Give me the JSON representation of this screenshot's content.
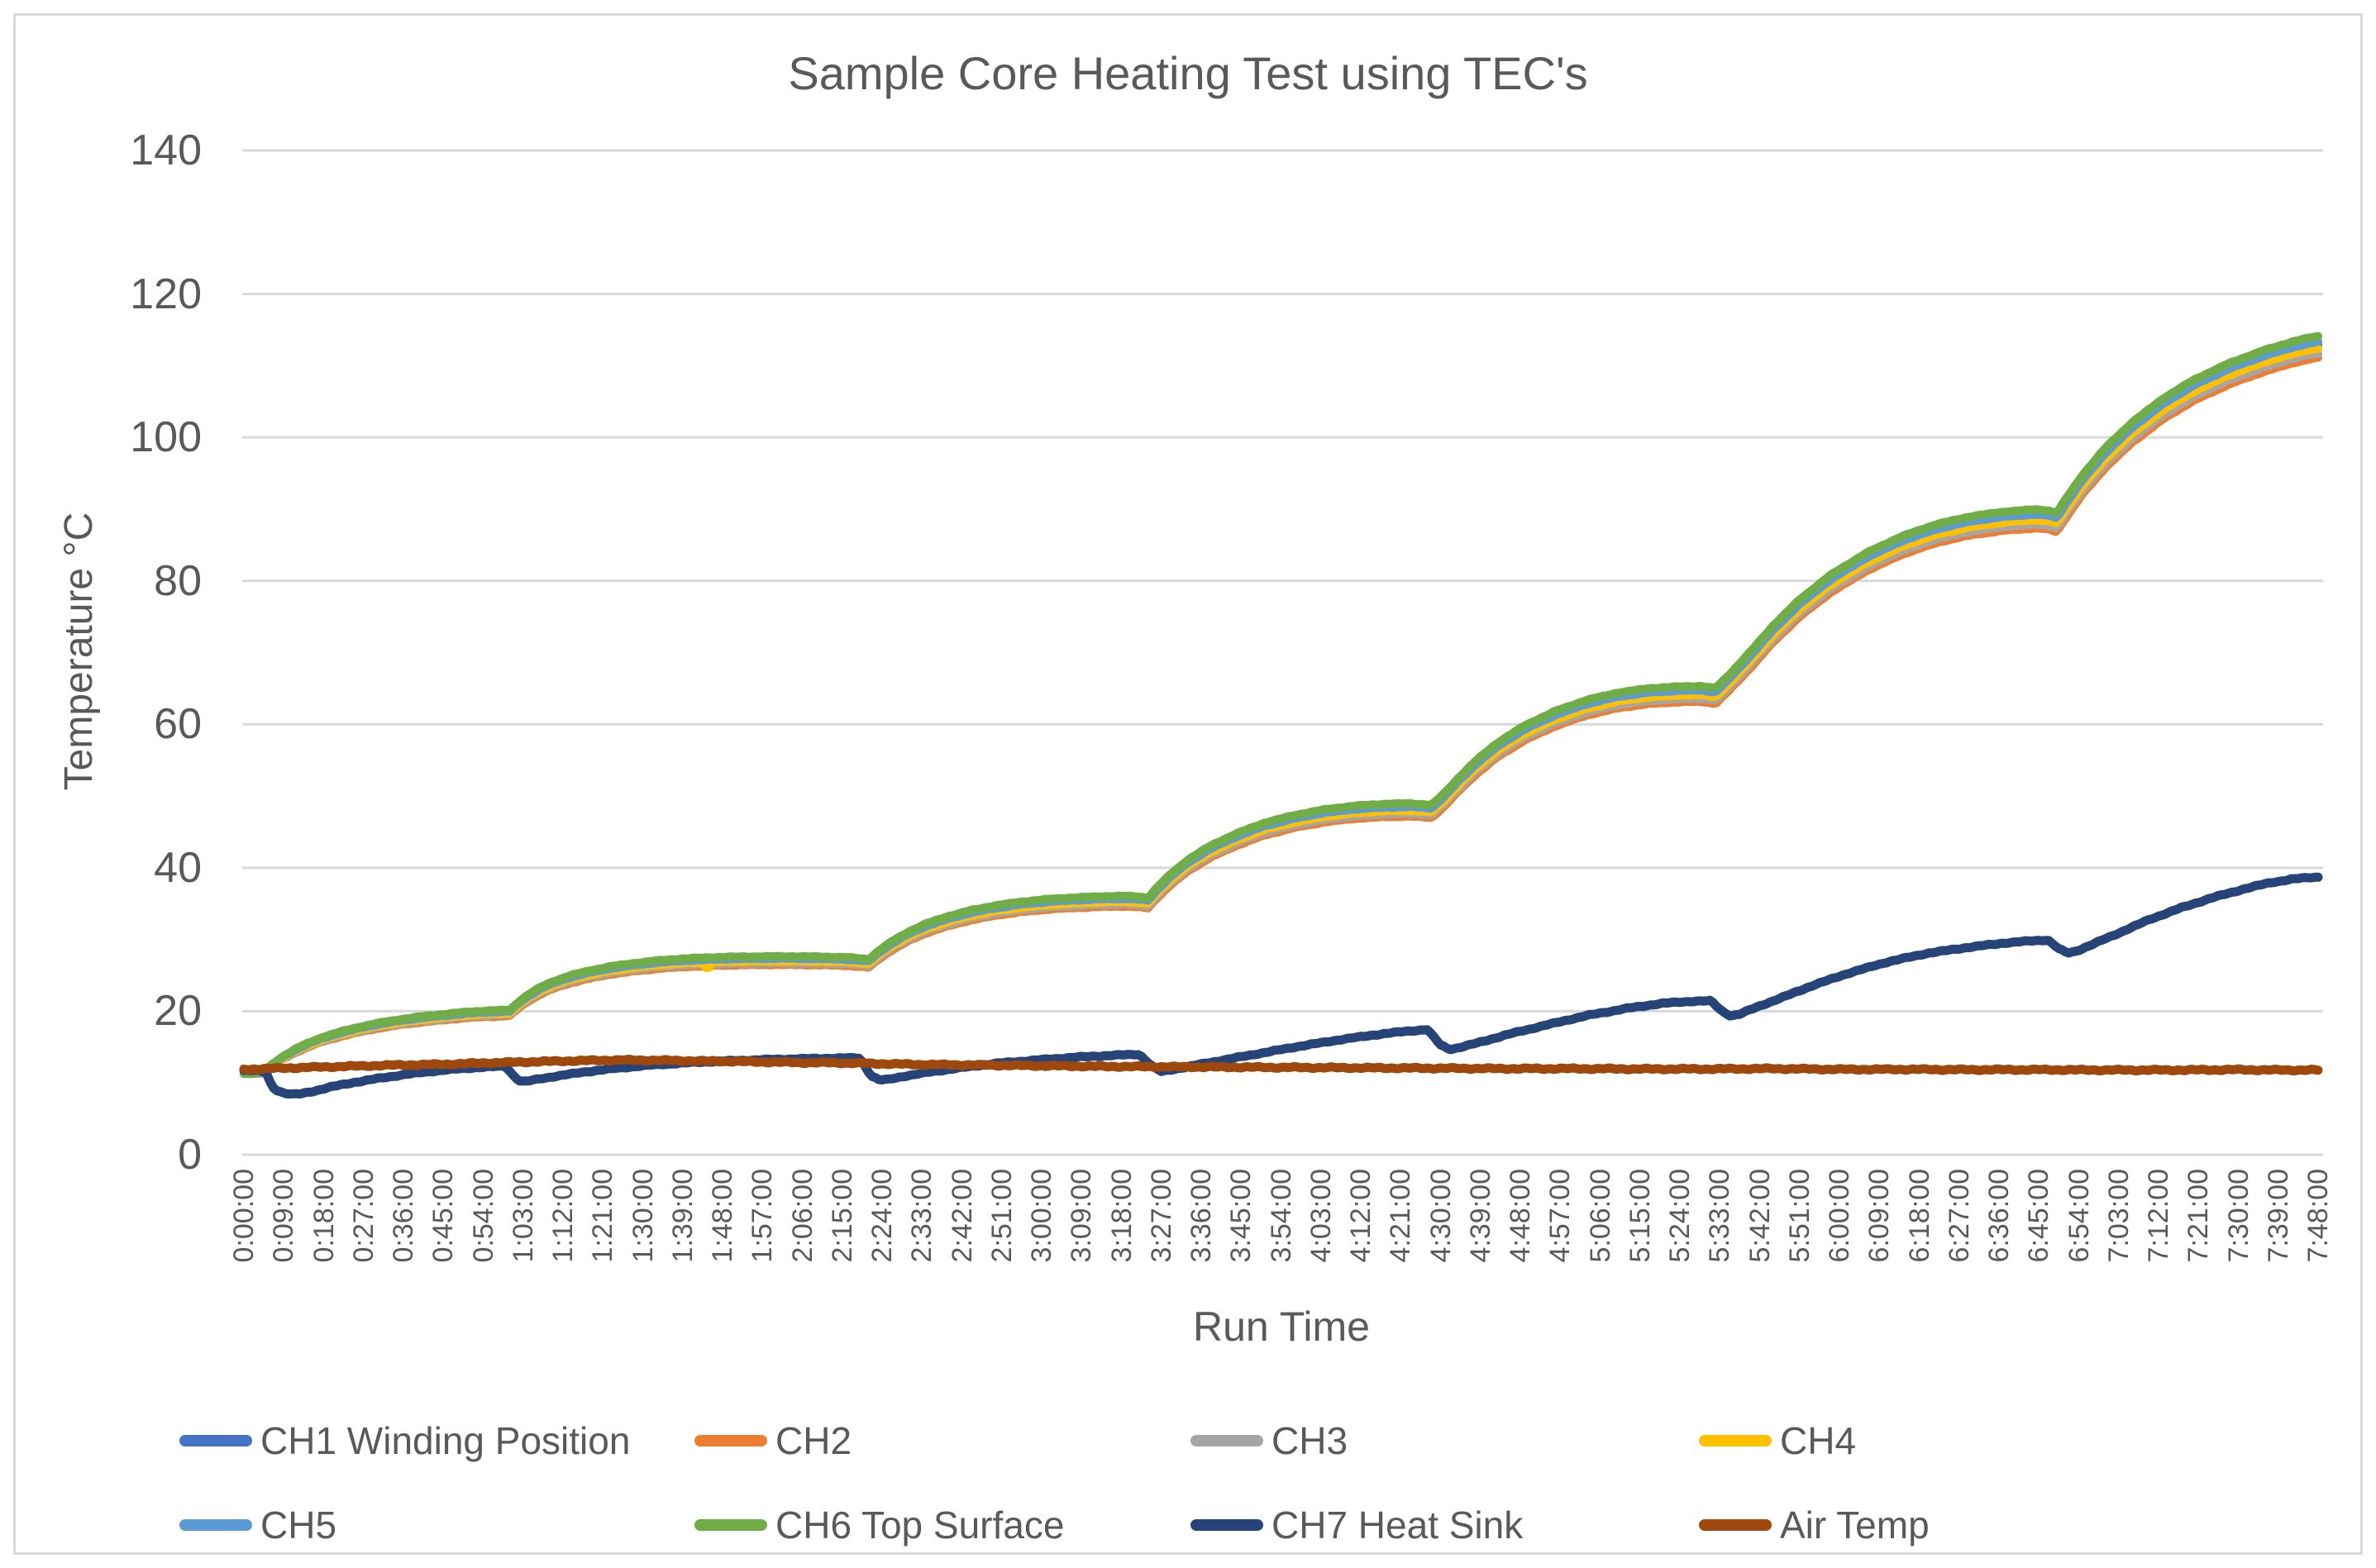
{
  "chart_title": "Sample Core Heating Test using TEC's",
  "styles": {
    "text_color": "#595959",
    "gridline_color": "#d9d9d9",
    "frame_color": "#d9d9d9",
    "background": "#ffffff"
  },
  "chart_data": {
    "type": "line",
    "title": "Sample Core Heating Test using TEC's",
    "xlabel": "Run Time",
    "ylabel": "Temperature °C",
    "ylim": [
      0,
      140
    ],
    "y_ticks": [
      0,
      20,
      40,
      60,
      80,
      100,
      120,
      140
    ],
    "grid": "horizontal",
    "legend_position": "bottom",
    "x_minutes_per_tick": 9,
    "x_total_minutes": 468,
    "x_tick_labels": [
      "0:00:00",
      "0:09:00",
      "0:18:00",
      "0:27:00",
      "0:36:00",
      "0:45:00",
      "0:54:00",
      "1:03:00",
      "1:12:00",
      "1:21:00",
      "1:30:00",
      "1:39:00",
      "1:48:00",
      "1:57:00",
      "2:06:00",
      "2:15:00",
      "2:24:00",
      "2:33:00",
      "2:42:00",
      "2:51:00",
      "3:00:00",
      "3:09:00",
      "3:18:00",
      "3:27:00",
      "3:36:00",
      "3:45:00",
      "3:54:00",
      "4:03:00",
      "4:12:00",
      "4:21:00",
      "4:30:00",
      "4:39:00",
      "4:48:00",
      "4:57:00",
      "5:06:00",
      "5:15:00",
      "5:24:00",
      "5:33:00",
      "5:42:00",
      "5:51:00",
      "6:00:00",
      "6:09:00",
      "6:18:00",
      "6:27:00",
      "6:36:00",
      "6:45:00",
      "6:54:00",
      "7:03:00",
      "7:12:00",
      "7:21:00",
      "7:30:00",
      "7:39:00",
      "7:48:00"
    ],
    "bundle_base_points": [
      [
        0,
        11.3
      ],
      [
        2,
        11.3
      ],
      [
        4,
        11.4
      ],
      [
        5,
        11.7
      ],
      [
        7,
        12.7
      ],
      [
        9,
        13.5
      ],
      [
        12,
        14.5
      ],
      [
        15,
        15.3
      ],
      [
        18,
        16.0
      ],
      [
        22,
        16.7
      ],
      [
        26,
        17.3
      ],
      [
        30,
        17.8
      ],
      [
        35,
        18.3
      ],
      [
        40,
        18.7
      ],
      [
        45,
        19.0
      ],
      [
        50,
        19.3
      ],
      [
        54,
        19.45
      ],
      [
        58,
        19.55
      ],
      [
        60,
        19.6
      ],
      [
        62,
        20.7
      ],
      [
        64,
        21.6
      ],
      [
        67,
        22.7
      ],
      [
        70,
        23.5
      ],
      [
        74,
        24.3
      ],
      [
        78,
        24.9
      ],
      [
        83,
        25.5
      ],
      [
        88,
        25.9
      ],
      [
        94,
        26.3
      ],
      [
        100,
        26.55
      ],
      [
        106,
        26.7
      ],
      [
        112,
        26.78
      ],
      [
        118,
        26.82
      ],
      [
        124,
        26.82
      ],
      [
        130,
        26.78
      ],
      [
        136,
        26.7
      ],
      [
        139,
        26.55
      ],
      [
        141,
        26.45
      ],
      [
        143,
        27.5
      ],
      [
        146,
        28.8
      ],
      [
        150,
        30.2
      ],
      [
        154,
        31.3
      ],
      [
        159,
        32.3
      ],
      [
        164,
        33.1
      ],
      [
        170,
        33.8
      ],
      [
        176,
        34.3
      ],
      [
        182,
        34.65
      ],
      [
        188,
        34.85
      ],
      [
        194,
        35.0
      ],
      [
        199,
        35.05
      ],
      [
        202,
        34.95
      ],
      [
        204,
        34.8
      ],
      [
        206,
        36.2
      ],
      [
        209,
        38.0
      ],
      [
        213,
        40.0
      ],
      [
        218,
        41.9
      ],
      [
        224,
        43.6
      ],
      [
        230,
        45.0
      ],
      [
        237,
        46.1
      ],
      [
        244,
        46.9
      ],
      [
        251,
        47.4
      ],
      [
        258,
        47.65
      ],
      [
        263,
        47.7
      ],
      [
        266,
        47.6
      ],
      [
        268,
        47.5
      ],
      [
        271,
        49.2
      ],
      [
        274,
        51.2
      ],
      [
        278,
        53.6
      ],
      [
        283,
        56.1
      ],
      [
        289,
        58.4
      ],
      [
        296,
        60.4
      ],
      [
        303,
        61.9
      ],
      [
        310,
        62.9
      ],
      [
        317,
        63.5
      ],
      [
        324,
        63.75
      ],
      [
        329,
        63.8
      ],
      [
        332,
        63.5
      ],
      [
        335,
        65.3
      ],
      [
        340,
        68.6
      ],
      [
        345,
        72.1
      ],
      [
        351,
        75.7
      ],
      [
        358,
        79.1
      ],
      [
        366,
        82.1
      ],
      [
        374,
        84.4
      ],
      [
        382,
        86.1
      ],
      [
        390,
        87.2
      ],
      [
        398,
        87.85
      ],
      [
        404,
        88.1
      ],
      [
        407,
        88.0
      ],
      [
        409,
        87.6
      ],
      [
        411,
        89.5
      ],
      [
        415,
        93.0
      ],
      [
        420,
        96.6
      ],
      [
        426,
        100.1
      ],
      [
        433,
        103.4
      ],
      [
        440,
        106.0
      ],
      [
        448,
        108.3
      ],
      [
        456,
        110.1
      ],
      [
        462,
        111.2
      ],
      [
        466,
        111.8
      ],
      [
        468,
        112.0
      ]
    ],
    "series": [
      {
        "name": "CH1 Winding Position",
        "color": "#4472C4",
        "group": "bundle",
        "offset_per_100": 0.9
      },
      {
        "name": "CH2",
        "color": "#ED7D31",
        "group": "bundle",
        "offset_per_100": -0.9
      },
      {
        "name": "CH3",
        "color": "#A5A5A5",
        "group": "bundle",
        "offset_per_100": -0.3
      },
      {
        "name": "CH4",
        "color": "#FFC000",
        "group": "bundle",
        "offset_per_100": 0.4,
        "glitch_points": [
          [
            103.8,
            26.5
          ],
          [
            104.6,
            25.7
          ],
          [
            105.4,
            26.5
          ]
        ]
      },
      {
        "name": "CH5",
        "color": "#5B9BD5",
        "group": "bundle",
        "offset_per_100": 1.3
      },
      {
        "name": "CH6 Top Surface",
        "color": "#70AD47",
        "group": "bundle",
        "offset_per_100": 2.1
      },
      {
        "name": "CH7 Heat Sink",
        "color": "#264478",
        "group": "own",
        "points": [
          [
            0,
            11.75
          ],
          [
            3,
            11.75
          ],
          [
            5,
            11.5
          ],
          [
            6,
            10.0
          ],
          [
            7,
            9.1
          ],
          [
            9,
            8.6
          ],
          [
            11,
            8.4
          ],
          [
            13,
            8.5
          ],
          [
            16,
            8.9
          ],
          [
            20,
            9.5
          ],
          [
            25,
            10.1
          ],
          [
            30,
            10.6
          ],
          [
            36,
            11.15
          ],
          [
            42,
            11.6
          ],
          [
            48,
            11.95
          ],
          [
            54,
            12.2
          ],
          [
            59,
            12.35
          ],
          [
            61,
            10.9
          ],
          [
            62.5,
            10.2
          ],
          [
            64,
            10.25
          ],
          [
            67,
            10.6
          ],
          [
            71,
            11.0
          ],
          [
            77,
            11.55
          ],
          [
            84,
            12.05
          ],
          [
            92,
            12.5
          ],
          [
            101,
            12.85
          ],
          [
            110,
            13.1
          ],
          [
            120,
            13.3
          ],
          [
            130,
            13.42
          ],
          [
            139,
            13.5
          ],
          [
            141.5,
            11.0
          ],
          [
            143.5,
            10.4
          ],
          [
            145.5,
            10.5
          ],
          [
            149,
            10.95
          ],
          [
            155,
            11.55
          ],
          [
            162,
            12.15
          ],
          [
            170,
            12.75
          ],
          [
            179,
            13.2
          ],
          [
            188,
            13.6
          ],
          [
            196,
            13.85
          ],
          [
            202,
            14.0
          ],
          [
            205,
            12.3
          ],
          [
            207,
            11.6
          ],
          [
            209,
            11.8
          ],
          [
            214,
            12.4
          ],
          [
            221,
            13.2
          ],
          [
            229,
            14.1
          ],
          [
            238,
            15.1
          ],
          [
            247,
            16.0
          ],
          [
            255,
            16.7
          ],
          [
            262,
            17.2
          ],
          [
            267,
            17.45
          ],
          [
            270,
            15.3
          ],
          [
            272,
            14.7
          ],
          [
            274,
            14.9
          ],
          [
            279,
            15.7
          ],
          [
            286,
            16.9
          ],
          [
            294,
            18.1
          ],
          [
            303,
            19.4
          ],
          [
            312,
            20.4
          ],
          [
            320,
            21.1
          ],
          [
            327,
            21.4
          ],
          [
            331,
            21.45
          ],
          [
            333.5,
            20.0
          ],
          [
            335.5,
            19.35
          ],
          [
            337.5,
            19.6
          ],
          [
            341,
            20.5
          ],
          [
            347,
            21.9
          ],
          [
            354,
            23.6
          ],
          [
            362,
            25.3
          ],
          [
            371,
            26.9
          ],
          [
            380,
            28.1
          ],
          [
            389,
            28.9
          ],
          [
            397,
            29.5
          ],
          [
            403,
            29.8
          ],
          [
            407,
            29.95
          ],
          [
            409.5,
            28.7
          ],
          [
            411.5,
            28.1
          ],
          [
            413.5,
            28.4
          ],
          [
            417,
            29.3
          ],
          [
            423,
            30.9
          ],
          [
            430,
            32.8
          ],
          [
            437,
            34.4
          ],
          [
            444,
            35.8
          ],
          [
            451,
            37.0
          ],
          [
            457,
            37.9
          ],
          [
            462,
            38.4
          ],
          [
            466,
            38.65
          ],
          [
            468,
            38.7
          ]
        ]
      },
      {
        "name": "Air Temp",
        "color": "#9E480E",
        "group": "own",
        "points": [
          [
            0,
            11.9
          ],
          [
            8,
            12.05
          ],
          [
            16,
            12.2
          ],
          [
            25,
            12.35
          ],
          [
            35,
            12.5
          ],
          [
            45,
            12.6
          ],
          [
            55,
            12.8
          ],
          [
            65,
            12.95
          ],
          [
            75,
            13.1
          ],
          [
            85,
            13.2
          ],
          [
            95,
            13.15
          ],
          [
            105,
            13.05
          ],
          [
            115,
            12.95
          ],
          [
            125,
            12.85
          ],
          [
            135,
            12.8
          ],
          [
            150,
            12.6
          ],
          [
            165,
            12.5
          ],
          [
            180,
            12.4
          ],
          [
            195,
            12.3
          ],
          [
            210,
            12.25
          ],
          [
            225,
            12.2
          ],
          [
            240,
            12.15
          ],
          [
            255,
            12.1
          ],
          [
            270,
            12.05
          ],
          [
            285,
            12.0
          ],
          [
            300,
            12.0
          ],
          [
            315,
            11.95
          ],
          [
            330,
            11.95
          ],
          [
            345,
            12.0
          ],
          [
            360,
            11.9
          ],
          [
            375,
            11.9
          ],
          [
            390,
            11.85
          ],
          [
            405,
            11.85
          ],
          [
            420,
            11.8
          ],
          [
            435,
            11.8
          ],
          [
            450,
            11.85
          ],
          [
            460,
            11.8
          ],
          [
            468,
            11.8
          ]
        ]
      }
    ],
    "legend_rows": [
      [
        "CH1 Winding Position",
        "CH2",
        "CH3",
        "CH4"
      ],
      [
        "CH5",
        "CH6 Top Surface",
        "CH7 Heat Sink",
        "Air Temp"
      ]
    ]
  }
}
